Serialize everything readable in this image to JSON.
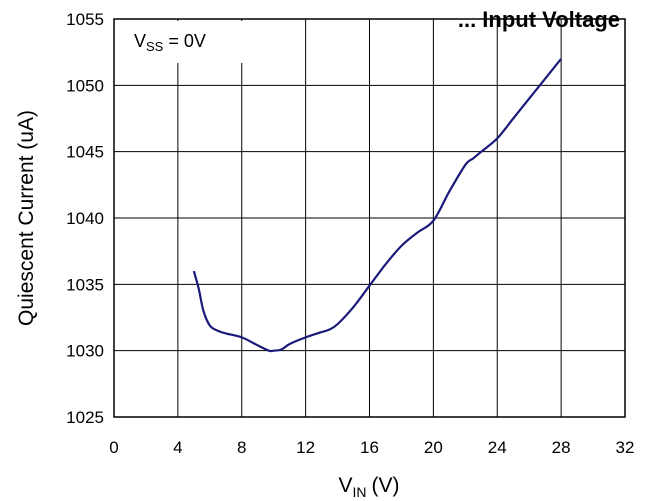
{
  "chart_data": {
    "type": "line",
    "title": "... Input Voltage",
    "xlabel": "V_IN (V)",
    "xlabel_main": "V",
    "xlabel_sub": "IN",
    "xlabel_unit": "(V)",
    "ylabel": "Quiescent Current (uA)",
    "xlim": [
      0,
      32
    ],
    "ylim": [
      1025,
      1055
    ],
    "xticks": [
      0,
      4,
      8,
      12,
      16,
      20,
      24,
      28,
      32
    ],
    "yticks": [
      1025,
      1030,
      1035,
      1040,
      1045,
      1050,
      1055
    ],
    "grid": true,
    "annotation": {
      "main": "V",
      "sub": "SS",
      "rest": " = 0V"
    },
    "series": [
      {
        "color": "#1a1a7a",
        "x": [
          5,
          5.3,
          5.6,
          6,
          6.5,
          7,
          8,
          9,
          9.7,
          10,
          10.5,
          11,
          12,
          13,
          13.5,
          14,
          15,
          16,
          17,
          18,
          19,
          20,
          21,
          22,
          22.5,
          23,
          24,
          25,
          26,
          27,
          28
        ],
        "y": [
          1036,
          1034.7,
          1033,
          1031.9,
          1031.5,
          1031.3,
          1031,
          1030.4,
          1030,
          1030,
          1030.1,
          1030.5,
          1031,
          1031.4,
          1031.6,
          1032,
          1033.3,
          1034.9,
          1036.5,
          1037.9,
          1038.9,
          1039.8,
          1042,
          1044,
          1044.5,
          1045,
          1046,
          1047.5,
          1049,
          1050.5,
          1052
        ]
      }
    ]
  }
}
